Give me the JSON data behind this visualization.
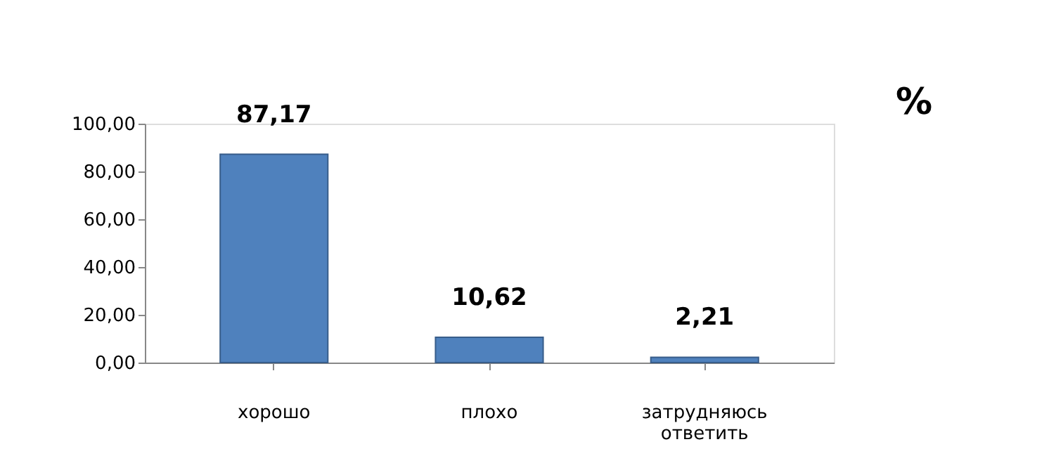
{
  "chart_data": {
    "type": "bar",
    "categories": [
      "хорошо",
      "плохо",
      "затрудняюсь ответить"
    ],
    "values": [
      87.17,
      10.62,
      2.21
    ],
    "value_labels": [
      "87,17",
      "10,62",
      "2,21"
    ],
    "color": "#4f81bd",
    "ylim": [
      0,
      100
    ],
    "yticks": [
      {
        "value": 0,
        "label": "0,00"
      },
      {
        "value": 20,
        "label": "20,00"
      },
      {
        "value": 40,
        "label": "40,00"
      },
      {
        "value": 60,
        "label": "60,00"
      },
      {
        "value": 80,
        "label": "80,00"
      },
      {
        "value": 100,
        "label": "100,00"
      }
    ],
    "grid": false,
    "annotations": [
      "%"
    ]
  }
}
